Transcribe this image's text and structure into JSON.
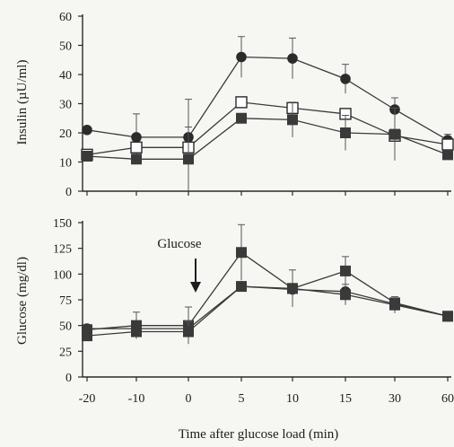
{
  "chart_data": [
    {
      "type": "line",
      "ylabel": "Insulin (µU/ml)",
      "xlabel": "",
      "ylim": [
        0,
        60
      ],
      "yticks": [
        "0",
        "10",
        "20",
        "30",
        "40",
        "50",
        "60"
      ],
      "categories": [
        "-20",
        "-10",
        "0",
        "5",
        "10",
        "15",
        "30",
        "60"
      ],
      "grid": false,
      "legend": "none",
      "series": [
        {
          "marker": "filled-circle",
          "values": [
            21,
            18.5,
            18.5,
            46,
            45.5,
            38.5,
            28,
            17.5
          ],
          "error": [
            0,
            8,
            13,
            7,
            7,
            5,
            4,
            2
          ]
        },
        {
          "marker": "open-square",
          "values": [
            12.5,
            15,
            15,
            30.5,
            28.5,
            26.5,
            19,
            16
          ],
          "error": [
            0,
            0,
            0,
            0,
            0,
            0,
            0,
            0
          ]
        },
        {
          "marker": "filled-square",
          "values": [
            12,
            11,
            11,
            25,
            24.5,
            20,
            19.5,
            12.5
          ],
          "error": [
            0,
            0,
            11,
            0,
            6,
            6,
            9,
            0
          ]
        }
      ]
    },
    {
      "type": "line",
      "ylabel": "Glucose (mg/dl)",
      "xlabel": "Time after glucose load (min)",
      "ylim": [
        0,
        150
      ],
      "yticks": [
        "0",
        "25",
        "50",
        "75",
        "100",
        "125",
        "150"
      ],
      "categories": [
        "-20",
        "-10",
        "0",
        "5",
        "10",
        "15",
        "30",
        "60"
      ],
      "grid": false,
      "legend": "none",
      "annotation": {
        "text": "Glucose",
        "at_category": "0"
      },
      "series": [
        {
          "marker": "filled-circle",
          "values": [
            47,
            47,
            47,
            88,
            85,
            83,
            71,
            59
          ],
          "error": [
            0,
            0,
            0,
            0,
            0,
            0,
            0,
            0
          ]
        },
        {
          "marker": "filled-square",
          "values": [
            46,
            50,
            50,
            121,
            86,
            103,
            72,
            59
          ],
          "error": [
            0,
            13,
            18,
            27,
            18,
            14,
            0,
            0
          ]
        },
        {
          "marker": "filled-square",
          "values": [
            40,
            44,
            44,
            88,
            86,
            80,
            70,
            59
          ],
          "error": [
            0,
            0,
            10,
            0,
            0,
            10,
            8,
            0
          ]
        }
      ]
    }
  ]
}
